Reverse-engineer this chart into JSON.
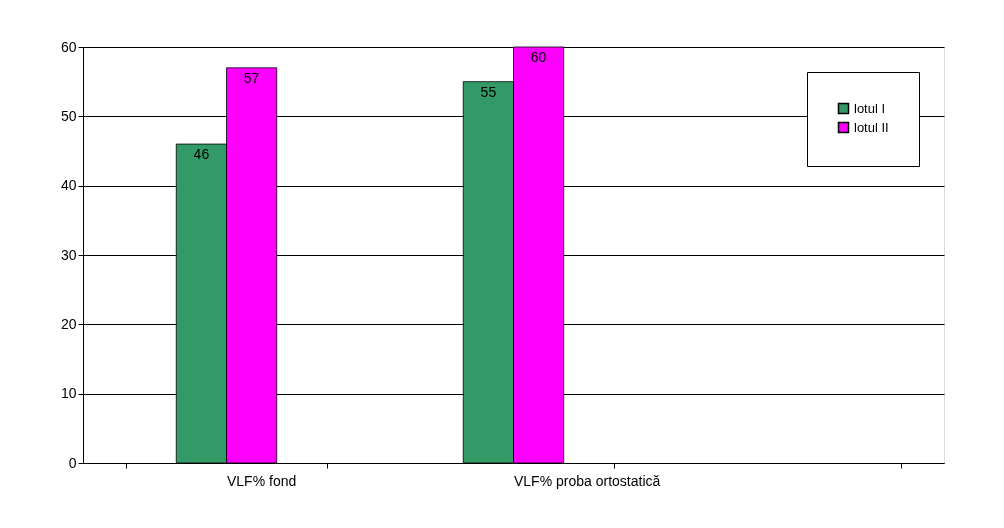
{
  "chart_data": {
    "type": "bar",
    "categories": [
      "VLF% fond",
      "VLF% proba ortostatică",
      null
    ],
    "series": [
      {
        "name": "lotul I",
        "color": "#339966",
        "values": [
          46,
          55,
          null
        ]
      },
      {
        "name": "lotul II",
        "color": "#ff00ff",
        "values": [
          57,
          60,
          null
        ]
      }
    ],
    "ylim": [
      0,
      60
    ],
    "yticks": [
      0,
      10,
      20,
      30,
      40,
      50,
      60
    ],
    "grid": "y",
    "legend": "top right",
    "data_labels": true
  }
}
